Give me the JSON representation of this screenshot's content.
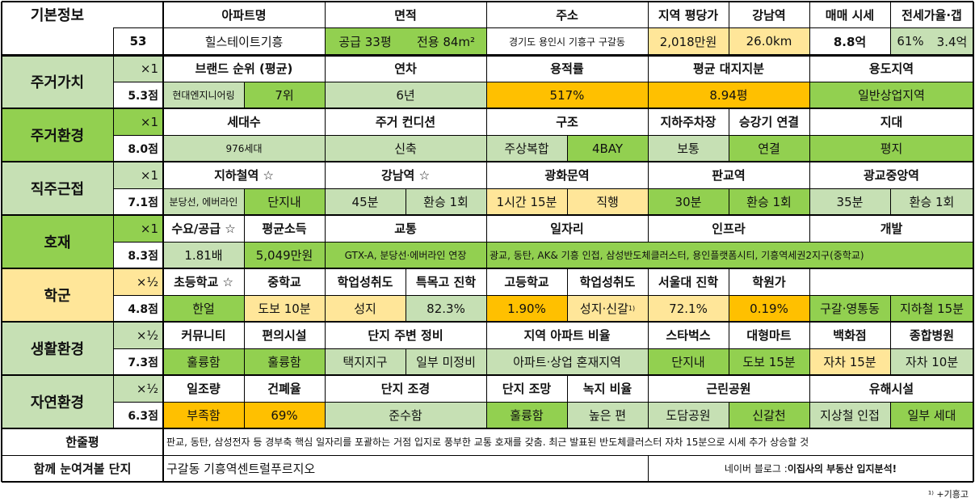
{
  "basic": {
    "label": "기본정보",
    "number": "53",
    "headers": [
      "아파트명",
      "면적",
      "주소",
      "지역 평당가",
      "강남역",
      "매매 시세",
      "전세가율·갭"
    ],
    "apartment": "힐스테이트기흥",
    "area_supply": "공급 33평",
    "area_private": "전용 84m²",
    "address": "경기도 용인시 기흥구 구갈동",
    "price_per_pyeong": "2,018만원",
    "gangnam_distance": "26.0km",
    "sale_price": "8.8억",
    "jeonse_ratio": "61%",
    "gap": "3.4억"
  },
  "sections": [
    {
      "label": "주거가치",
      "weight": "×1",
      "score": "5.3점",
      "headers": [
        "브랜드 순위 (평균)",
        "연차",
        "용적률",
        "평균 대지지분",
        "용도지역"
      ],
      "values": [
        "현대엔지니어링",
        "7위",
        "6년",
        "517%",
        "8.94평",
        "일반상업지역"
      ]
    },
    {
      "label": "주거환경",
      "weight": "×1",
      "score": "8.0점",
      "headers": [
        "세대수",
        "주거 컨디션",
        "구조",
        "지하주차장",
        "승강기 연결",
        "지대"
      ],
      "values": [
        "976세대",
        "신축",
        "주상복합",
        "4BAY",
        "보통",
        "연결",
        "평지"
      ]
    },
    {
      "label": "직주근접",
      "weight": "×1",
      "score": "7.1점",
      "headers": [
        "지하철역 ☆",
        "강남역 ☆",
        "광화문역",
        "판교역",
        "광교중앙역"
      ],
      "values": [
        "분당선, 에버라인",
        "단지내",
        "45분",
        "환승 1회",
        "1시간 15분",
        "직행",
        "30분",
        "환승 1회",
        "35분",
        "환승 1회"
      ]
    },
    {
      "label": "호재",
      "weight": "×1",
      "score": "8.3점",
      "headers": [
        "수요/공급 ☆",
        "평균소득",
        "교통",
        "일자리",
        "인프라",
        "개발"
      ],
      "values": [
        "1.81배",
        "5,049만원",
        "GTX-A, 분당선·에버라인 연장",
        "광교, 동탄, AK& 기흥 인접, 삼성반도체클러스터, 용인플랫폼시티, 기흥역세권2지구(중학교)"
      ]
    },
    {
      "label": "학군",
      "weight": "×½",
      "score": "4.8점",
      "headers": [
        "초등학교 ☆",
        "중학교",
        "학업성취도",
        "특목고 진학",
        "고등학교",
        "학업성취도",
        "서울대 진학",
        "학원가"
      ],
      "values": [
        "한얼",
        "도보 10분",
        "성지",
        "82.3%",
        "1.90%",
        "성지·신갈",
        "72.1%",
        "0.19%",
        "구갈·영통동",
        "지하철 15분"
      ],
      "sup": "1)"
    },
    {
      "label": "생활환경",
      "weight": "×½",
      "score": "7.3점",
      "headers": [
        "커뮤니티",
        "편의시설",
        "단지 주변 정비",
        "지역 아파트 비율",
        "스타벅스",
        "대형마트",
        "백화점",
        "종합병원"
      ],
      "values": [
        "훌륭함",
        "훌륭함",
        "택지지구",
        "일부 미정비",
        "아파트·상업 혼재지역",
        "단지내",
        "도보 15분",
        "자차 15분",
        "자차 10분"
      ]
    },
    {
      "label": "자연환경",
      "weight": "×½",
      "score": "6.3점",
      "headers": [
        "일조량",
        "건폐율",
        "단지 조경",
        "단지 조망",
        "녹지 비율",
        "근린공원",
        "유해시설"
      ],
      "values": [
        "부족함",
        "69%",
        "준수함",
        "훌륭함",
        "높은 편",
        "도담공원",
        "신갈천",
        "지상철 인접",
        "일부 세대"
      ]
    }
  ],
  "summary": {
    "label": "한줄평",
    "text": "판교, 동탄, 삼성전자 등 경부축 핵심 일자리를 포괄하는 거점 입지로 풍부한 교통 호재를 갖춤. 최근 발표된 반도체클러스터 자차 15분으로 시세 추가 상승할 것"
  },
  "related": {
    "label": "함께 눈여겨볼 단지",
    "text": "구갈동 기흥역센트럴푸르지오",
    "blog_prefix": "네이버 블로그 : ",
    "blog_name": "이집사의 부동산 입지분석!"
  },
  "footnote": "¹⁾ +기흥고",
  "colors": {
    "dark_green": "#92d050",
    "light_green": "#c6e0b4",
    "orange": "#ffc000",
    "light_yellow": "#ffe699",
    "white": "#ffffff"
  }
}
